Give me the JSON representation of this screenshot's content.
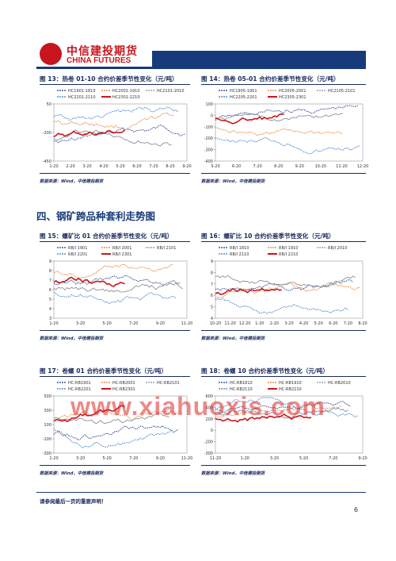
{
  "header": {
    "brand_cn": "中信建投期货",
    "brand_en": "CHINA FUTURES"
  },
  "section_title": "四、钢矿跨品种套利走势图",
  "source_text": "数据来源：Wind，中信建投期货",
  "footer_note": "请参阅最后一页的重要声明！",
  "page_number": "6",
  "watermark": "www.xiahuoxis.com",
  "charts": [
    {
      "title": "图 13：热卷 01-10 合约价差季节性变化（元/吨）",
      "legend": [
        "HC1901-1810",
        "HC2001-1910",
        "HC2101-2010",
        "HC2201-2110",
        "HC2301-2210"
      ],
      "colors": [
        "#1f3b8c",
        "#e07a2a",
        "#8a8f99",
        "#3a78c8",
        "#c8161e"
      ],
      "yticks": [
        "50",
        "-200",
        "-450"
      ],
      "xticks": [
        "1-20",
        "2-20",
        "3-20",
        "4-20",
        "5-20",
        "6-20",
        "7-20",
        "8-20",
        "9-20"
      ]
    },
    {
      "title": "图 14：热卷 05-01 合约价差季节性变化（元/吨）",
      "legend": [
        "HC1905-1901",
        "HC2005-2001",
        "HC2105-2101",
        "HC2205-2201",
        "HC2305-2301"
      ],
      "colors": [
        "#1f3b8c",
        "#e07a2a",
        "#8a8f99",
        "#3a78c8",
        "#c8161e"
      ],
      "yticks": [
        "100",
        "0",
        "-100",
        "-200",
        "-300",
        "-400"
      ],
      "xticks": [
        "5-20",
        "6-20",
        "7-20",
        "8-20",
        "9-20",
        "10-20",
        "11-20",
        "12-20"
      ]
    },
    {
      "title": "图 15：螺矿比 01 合约价差季节性变化（元/吨）",
      "legend": [
        "RB/I 1901",
        "RB/I 2001",
        "RB/I 2101",
        "RB/I 2201",
        "RB/I 2301"
      ],
      "colors": [
        "#1f3b8c",
        "#e07a2a",
        "#8a8f99",
        "#3a78c8",
        "#c8161e"
      ],
      "yticks": [
        "9",
        "8",
        "7",
        "6",
        "5",
        "4",
        "3"
      ],
      "xticks": [
        "1-20",
        "3-20",
        "5-20",
        "7-20",
        "9-20",
        "11-20"
      ]
    },
    {
      "title": "图 16：螺矿比 10 合约价差季节性变化（元/吨）",
      "legend": [
        "RB/I 1810",
        "RB/I 1910",
        "RB/I 2010",
        "RB/I 2110",
        "RB/I 2210"
      ],
      "colors": [
        "#1f3b8c",
        "#e07a2a",
        "#8a8f99",
        "#3a78c8",
        "#c8161e"
      ],
      "yticks": [
        "9",
        "8",
        "7",
        "6",
        "5",
        "4"
      ],
      "xticks": [
        "10-20",
        "11-20",
        "12-20",
        "1-20",
        "2-20",
        "3-20",
        "4-20",
        "5-20",
        "6-20",
        "7-20",
        "8-20"
      ]
    },
    {
      "title": "图 17：卷螺 01 合约价差季节性变化（元/吨）",
      "legend": [
        "HC-RB1901",
        "HC-RB2001",
        "HC-RB2101",
        "HC-RB2201",
        "HC-RB2301"
      ],
      "colors": [
        "#1f3b8c",
        "#e07a2a",
        "#8a8f99",
        "#3a78c8",
        "#c8161e"
      ],
      "yticks": [
        "500",
        "300",
        "100",
        "-100",
        "-300"
      ],
      "xticks": [
        "1-20",
        "3-20",
        "5-20",
        "7-20",
        "9-20",
        "11-20"
      ]
    },
    {
      "title": "图 18：卷螺 10 合约价差季节性变化（元/吨）",
      "legend": [
        "HC-RB1810",
        "HC-RB1910",
        "HC-RB2010",
        "HC-RB2110",
        "HC-RB2210"
      ],
      "colors": [
        "#1f3b8c",
        "#e07a2a",
        "#8a8f99",
        "#3a78c8",
        "#c8161e"
      ],
      "yticks": [
        "600",
        "400",
        "200",
        "0",
        "-200",
        "-300"
      ],
      "xticks": [
        "11-20",
        "1-20",
        "3-20",
        "5-20",
        "7-20",
        "9-20"
      ]
    }
  ]
}
